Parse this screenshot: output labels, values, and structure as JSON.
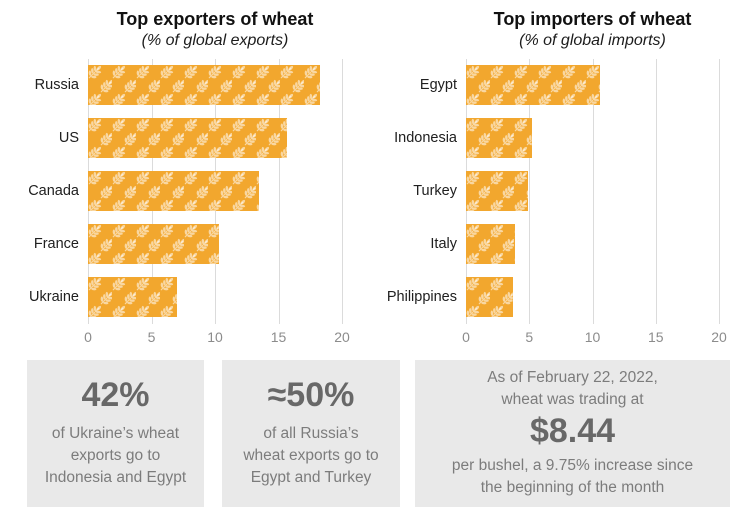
{
  "chart_data": [
    {
      "type": "bar",
      "orientation": "horizontal",
      "title": "Top exporters of wheat",
      "subtitle": "(% of global exports)",
      "categories": [
        "Russia",
        "US",
        "Canada",
        "France",
        "Ukraine"
      ],
      "values": [
        18.3,
        15.7,
        13.5,
        10.3,
        7.0
      ],
      "xlabel": "",
      "ylabel": "",
      "xlim": [
        0,
        20
      ],
      "ticks": [
        0,
        5,
        10,
        15,
        20
      ],
      "grid": "vertical",
      "legend": "none",
      "bar_color": "#F2A72E",
      "bar_pattern": "wheat-sprigs"
    },
    {
      "type": "bar",
      "orientation": "horizontal",
      "title": "Top importers of wheat",
      "subtitle": "(% of global imports)",
      "categories": [
        "Egypt",
        "Indonesia",
        "Turkey",
        "Italy",
        "Philippines"
      ],
      "values": [
        10.6,
        5.2,
        4.9,
        3.9,
        3.7
      ],
      "xlabel": "",
      "ylabel": "",
      "xlim": [
        0,
        20
      ],
      "ticks": [
        0,
        5,
        10,
        15,
        20
      ],
      "grid": "vertical",
      "legend": "none",
      "bar_color": "#F2A72E",
      "bar_pattern": "wheat-sprigs"
    }
  ],
  "stats": [
    {
      "value": "42%",
      "lines": [
        "of Ukraine’s wheat",
        "exports go to",
        "Indonesia and Egypt"
      ]
    },
    {
      "value": "≈50%",
      "lines": [
        "of all Russia’s",
        "wheat exports go to",
        "Egypt and Turkey"
      ]
    },
    {
      "intro": [
        "As of February 22, 2022,",
        "wheat was trading at"
      ],
      "value": "$8.44",
      "outro": [
        "per bushel, a 9.75% increase since",
        "the beginning of the month"
      ]
    }
  ],
  "colors": {
    "bar": "#F2A72E",
    "bar_pattern_glyph": "rgba(255,255,255,0.55)",
    "gridline": "#DBDBDB",
    "tick_label": "#8C8C8C",
    "category_label": "#202020",
    "title": "#111111",
    "stat_box_bg": "#E9E9E9",
    "stat_number": "#686868",
    "stat_text": "#7C7C7C",
    "background": "#FFFFFF"
  }
}
